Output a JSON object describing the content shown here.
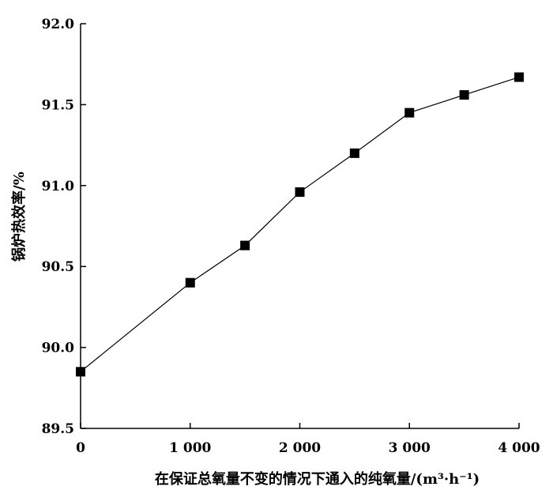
{
  "chart_data": {
    "type": "line",
    "title": "",
    "xlabel": "在保证总氧量不变的情况下通入的纯氧量/(m³·h⁻¹)",
    "ylabel": "锅炉热效率/%",
    "xlim": [
      0,
      4000
    ],
    "ylim": [
      89.5,
      92.0
    ],
    "x_ticks": [
      0,
      1000,
      2000,
      3000,
      4000
    ],
    "x_tick_labels": [
      "0",
      "1 000",
      "2 000",
      "3 000",
      "4 000"
    ],
    "y_ticks": [
      89.5,
      90.0,
      90.5,
      91.0,
      91.5,
      92.0
    ],
    "y_tick_labels": [
      "89.5",
      "90.0",
      "90.5",
      "91.0",
      "91.5",
      "92.0"
    ],
    "grid": false,
    "marker": "square",
    "color": "#000000",
    "series": [
      {
        "x": [
          0,
          1000,
          1500,
          2000,
          2500,
          3000,
          3500,
          4000
        ],
        "values": [
          89.85,
          90.4,
          90.63,
          90.96,
          91.2,
          91.45,
          91.56,
          91.67
        ]
      }
    ]
  }
}
